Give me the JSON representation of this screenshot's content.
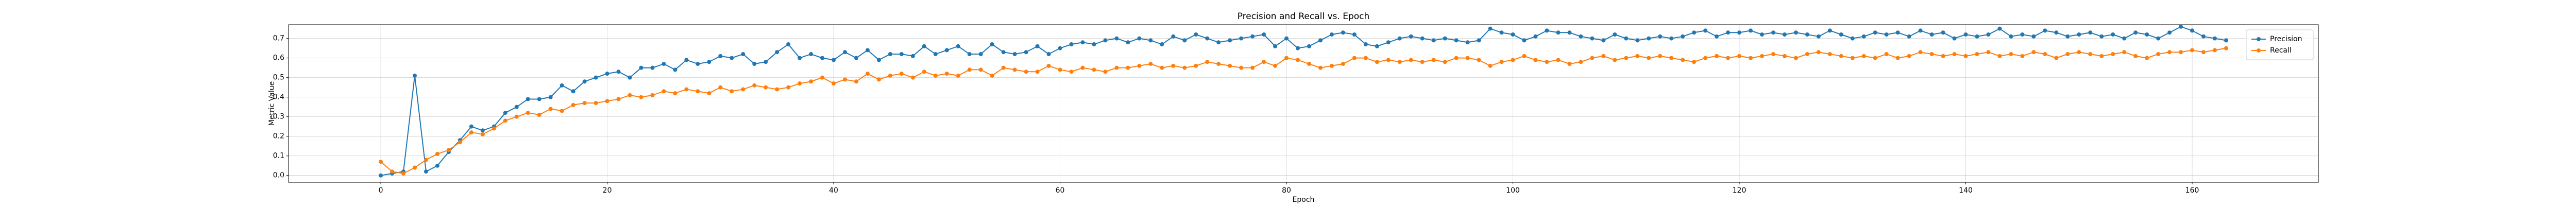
{
  "chart_data": {
    "type": "line",
    "title": "Precision and Recall vs. Epoch",
    "xlabel": "Epoch",
    "ylabel": "Metric Value",
    "x": [
      0,
      1,
      2,
      3,
      4,
      5,
      6,
      7,
      8,
      9,
      10,
      11,
      12,
      13,
      14,
      15,
      16,
      17,
      18,
      19,
      20,
      21,
      22,
      23,
      24,
      25,
      26,
      27,
      28,
      29,
      30,
      31,
      32,
      33,
      34,
      35,
      36,
      37,
      38,
      39,
      40,
      41,
      42,
      43,
      44,
      45,
      46,
      47,
      48,
      49,
      50,
      51,
      52,
      53,
      54,
      55,
      56,
      57,
      58,
      59,
      60,
      61,
      62,
      63,
      64,
      65,
      66,
      67,
      68,
      69,
      70,
      71,
      72,
      73,
      74,
      75,
      76,
      77,
      78,
      79,
      80,
      81,
      82,
      83,
      84,
      85,
      86,
      87,
      88,
      89,
      90,
      91,
      92,
      93,
      94,
      95,
      96,
      97,
      98,
      99,
      100,
      101,
      102,
      103,
      104,
      105,
      106,
      107,
      108,
      109,
      110,
      111,
      112,
      113,
      114,
      115,
      116,
      117,
      118,
      119,
      120,
      121,
      122,
      123,
      124,
      125,
      126,
      127,
      128,
      129,
      130,
      131,
      132,
      133,
      134,
      135,
      136,
      137,
      138,
      139,
      140,
      141,
      142,
      143,
      144,
      145,
      146,
      147,
      148,
      149,
      150,
      151,
      152,
      153,
      154,
      155,
      156,
      157,
      158,
      159,
      160,
      161,
      162,
      163
    ],
    "series": [
      {
        "name": "Precision",
        "color": "#1f77b4",
        "values": [
          0.0,
          0.01,
          0.02,
          0.51,
          0.02,
          0.05,
          0.12,
          0.18,
          0.25,
          0.23,
          0.25,
          0.32,
          0.35,
          0.39,
          0.39,
          0.4,
          0.46,
          0.43,
          0.48,
          0.5,
          0.52,
          0.53,
          0.5,
          0.55,
          0.55,
          0.57,
          0.54,
          0.59,
          0.57,
          0.58,
          0.61,
          0.6,
          0.62,
          0.57,
          0.58,
          0.63,
          0.67,
          0.6,
          0.62,
          0.6,
          0.59,
          0.63,
          0.6,
          0.64,
          0.59,
          0.62,
          0.62,
          0.61,
          0.66,
          0.62,
          0.64,
          0.66,
          0.62,
          0.62,
          0.67,
          0.63,
          0.62,
          0.63,
          0.66,
          0.62,
          0.65,
          0.67,
          0.68,
          0.67,
          0.69,
          0.7,
          0.68,
          0.7,
          0.69,
          0.67,
          0.71,
          0.69,
          0.72,
          0.7,
          0.68,
          0.69,
          0.7,
          0.71,
          0.72,
          0.66,
          0.7,
          0.65,
          0.66,
          0.69,
          0.72,
          0.73,
          0.72,
          0.67,
          0.66,
          0.68,
          0.7,
          0.71,
          0.7,
          0.69,
          0.7,
          0.69,
          0.68,
          0.69,
          0.75,
          0.73,
          0.72,
          0.69,
          0.71,
          0.74,
          0.73,
          0.73,
          0.71,
          0.7,
          0.69,
          0.72,
          0.7,
          0.69,
          0.7,
          0.71,
          0.7,
          0.71,
          0.73,
          0.74,
          0.71,
          0.73,
          0.73,
          0.74,
          0.72,
          0.73,
          0.72,
          0.73,
          0.72,
          0.71,
          0.74,
          0.72,
          0.7,
          0.71,
          0.73,
          0.72,
          0.73,
          0.71,
          0.74,
          0.72,
          0.73,
          0.7,
          0.72,
          0.71,
          0.72,
          0.75,
          0.71,
          0.72,
          0.71,
          0.74,
          0.73,
          0.71,
          0.72,
          0.73,
          0.71,
          0.72,
          0.7,
          0.73,
          0.72,
          0.7,
          0.73,
          0.76,
          0.74,
          0.71,
          0.7,
          0.69
        ]
      },
      {
        "name": "Recall",
        "color": "#ff7f0e",
        "values": [
          0.07,
          0.02,
          0.01,
          0.04,
          0.08,
          0.11,
          0.13,
          0.17,
          0.22,
          0.21,
          0.24,
          0.28,
          0.3,
          0.32,
          0.31,
          0.34,
          0.33,
          0.36,
          0.37,
          0.37,
          0.38,
          0.39,
          0.41,
          0.4,
          0.41,
          0.43,
          0.42,
          0.44,
          0.43,
          0.42,
          0.45,
          0.43,
          0.44,
          0.46,
          0.45,
          0.44,
          0.45,
          0.47,
          0.48,
          0.5,
          0.47,
          0.49,
          0.48,
          0.52,
          0.49,
          0.51,
          0.52,
          0.5,
          0.53,
          0.51,
          0.52,
          0.51,
          0.54,
          0.54,
          0.51,
          0.55,
          0.54,
          0.53,
          0.53,
          0.56,
          0.54,
          0.53,
          0.55,
          0.54,
          0.53,
          0.55,
          0.55,
          0.56,
          0.57,
          0.55,
          0.56,
          0.55,
          0.56,
          0.58,
          0.57,
          0.56,
          0.55,
          0.55,
          0.58,
          0.56,
          0.6,
          0.59,
          0.57,
          0.55,
          0.56,
          0.57,
          0.6,
          0.6,
          0.58,
          0.59,
          0.58,
          0.59,
          0.58,
          0.59,
          0.58,
          0.6,
          0.6,
          0.59,
          0.56,
          0.58,
          0.59,
          0.61,
          0.59,
          0.58,
          0.59,
          0.57,
          0.58,
          0.6,
          0.61,
          0.59,
          0.6,
          0.61,
          0.6,
          0.61,
          0.6,
          0.59,
          0.58,
          0.6,
          0.61,
          0.6,
          0.61,
          0.6,
          0.61,
          0.62,
          0.61,
          0.6,
          0.62,
          0.63,
          0.62,
          0.61,
          0.6,
          0.61,
          0.6,
          0.62,
          0.6,
          0.61,
          0.63,
          0.62,
          0.61,
          0.62,
          0.61,
          0.62,
          0.63,
          0.61,
          0.62,
          0.61,
          0.63,
          0.62,
          0.6,
          0.62,
          0.63,
          0.62,
          0.61,
          0.62,
          0.63,
          0.61,
          0.6,
          0.62,
          0.63,
          0.63,
          0.64,
          0.63,
          0.64,
          0.65
        ]
      }
    ],
    "xlim": [
      -8.15,
      171.15
    ],
    "xticks": [
      0,
      20,
      40,
      60,
      80,
      100,
      120,
      140,
      160
    ],
    "ylim": [
      -0.035,
      0.77
    ],
    "yticks": [
      {
        "value": 0,
        "label": "0.0"
      },
      0.1,
      0.2,
      0.3,
      0.4,
      0.5,
      0.6,
      0.7
    ],
    "grid": true,
    "legend": "upper right",
    "marker": "circle"
  }
}
